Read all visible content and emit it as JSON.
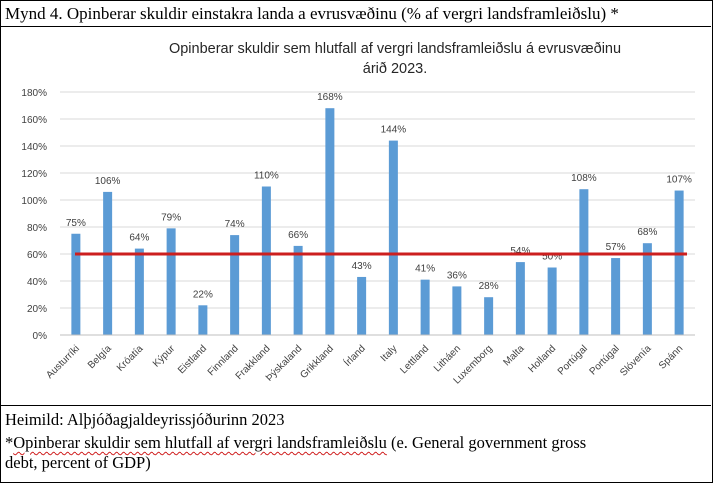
{
  "caption": "Mynd 4. Opinberar skuldir einstakra landa a evrusvæðinu (% af vergri landsframleiðslu) *",
  "footer": {
    "source": "Heimild: Alþjóðagjaldeyrissjóðurinn 2023",
    "note_prefix": "*",
    "note_underlined": "Opinberar skuldir sem hlutfall af vergri landsframleiðslu",
    "note_rest": " (e. General government gross",
    "note_line2": "debt, percent of GDP)"
  },
  "chart_data": {
    "type": "bar",
    "title_line1": "Opinberar skuldir sem hlutfall af vergri landsframleiðslu á evrusvæðinu",
    "title_line2": "árið 2023.",
    "categories": [
      "Austurríki",
      "Belgía",
      "Króatía",
      "Kýpur",
      "Eistland",
      "Finnland",
      "Frakkland",
      "Þýskaland",
      "Grikkland",
      "Írland",
      "Italy",
      "Lettland",
      "Litháen",
      "Luxemborg",
      "Malta",
      "Holland",
      "Portúgal",
      "Portúgal",
      "Slóvenía",
      "Spánn"
    ],
    "values": [
      75,
      106,
      64,
      79,
      22,
      74,
      110,
      66,
      168,
      43,
      144,
      41,
      36,
      28,
      54,
      50,
      108,
      57,
      68,
      107
    ],
    "data_labels": [
      "75%",
      "106%",
      "64%",
      "79%",
      "22%",
      "74%",
      "110%",
      "66%",
      "168%",
      "43%",
      "144%",
      "41%",
      "36%",
      "28%",
      "54%",
      "50%",
      "108%",
      "57%",
      "68%",
      "107%"
    ],
    "y_ticks": [
      "0%",
      "20%",
      "40%",
      "60%",
      "80%",
      "100%",
      "120%",
      "140%",
      "160%",
      "180%"
    ],
    "ylim": [
      0,
      180
    ],
    "reference_line": 60,
    "grid": true,
    "colors": {
      "bar": "#5b9bd5",
      "reference": "#cc1f1f",
      "grid": "#d9d9d9"
    }
  }
}
